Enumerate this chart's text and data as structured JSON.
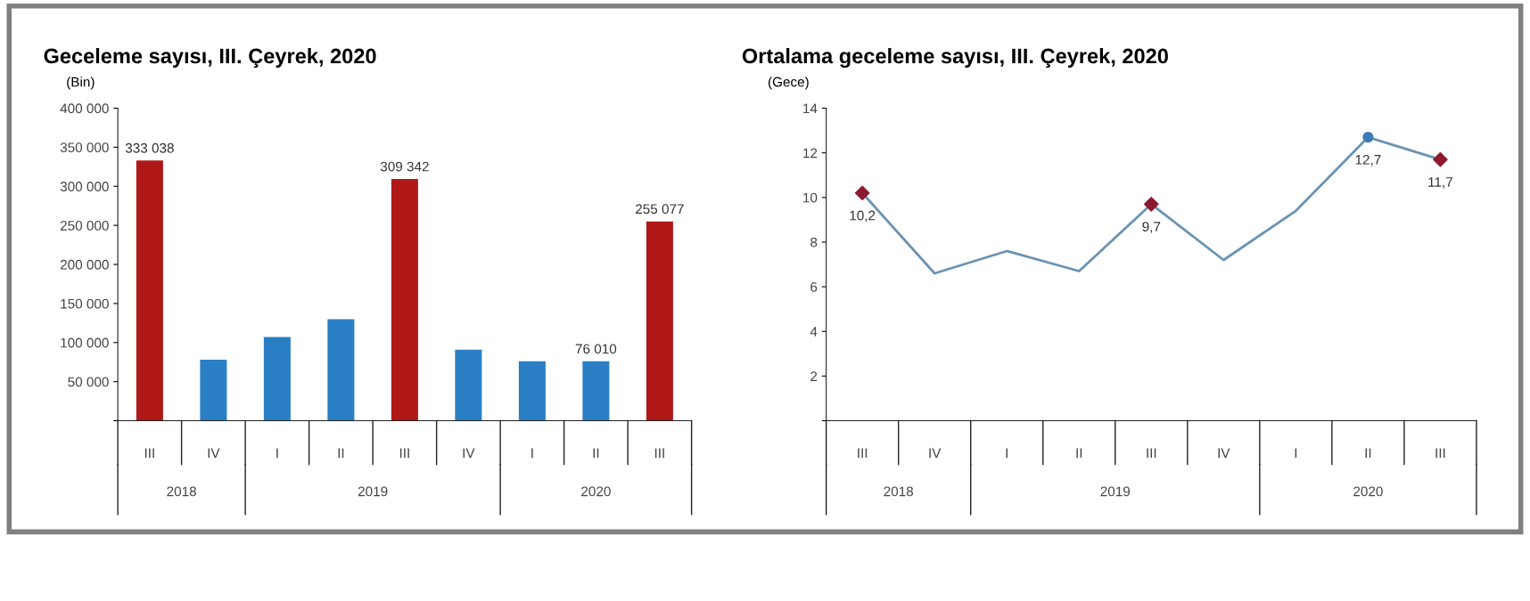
{
  "chart_data": [
    {
      "type": "bar",
      "title": "Geceleme sayısı, III. Çeyrek, 2020",
      "ylabel": "(Bin)",
      "categories": [
        "III",
        "IV",
        "I",
        "II",
        "III",
        "IV",
        "I",
        "II",
        "III"
      ],
      "values": [
        333038,
        78000,
        107000,
        130000,
        309342,
        91000,
        76000,
        76010,
        255077
      ],
      "colors": [
        "#b01818",
        "#2a7fc4",
        "#2a7fc4",
        "#2a7fc4",
        "#b01818",
        "#2a7fc4",
        "#2a7fc4",
        "#2a7fc4",
        "#b01818"
      ],
      "value_labels": [
        "333 038",
        null,
        null,
        null,
        "309 342",
        null,
        null,
        "76 010",
        "255 077"
      ],
      "ylim": [
        0,
        400000
      ],
      "yticks": [
        {
          "value": 0,
          "label": null
        },
        {
          "value": 50000,
          "label": "50 000"
        },
        {
          "value": 100000,
          "label": "100 000"
        },
        {
          "value": 150000,
          "label": "150 000"
        },
        {
          "value": 200000,
          "label": "200 000"
        },
        {
          "value": 250000,
          "label": "250 000"
        },
        {
          "value": 300000,
          "label": "300 000"
        },
        {
          "value": 350000,
          "label": "350 000"
        },
        {
          "value": 400000,
          "label": "400 000"
        }
      ],
      "annotations": [
        "2018",
        "2019",
        "2020"
      ],
      "grid": false,
      "legend": false
    },
    {
      "type": "line",
      "title": "Ortalama geceleme sayısı, III. Çeyrek, 2020",
      "ylabel": "(Gece)",
      "categories": [
        "III",
        "IV",
        "I",
        "II",
        "III",
        "IV",
        "I",
        "II",
        "III"
      ],
      "series": [
        {
          "type": "line",
          "color": "#6a93b3",
          "values": [
            10.2,
            6.6,
            7.6,
            6.7,
            9.7,
            7.2,
            9.4,
            12.7,
            11.7
          ],
          "value_labels": [
            "10,2",
            null,
            null,
            null,
            "9,7",
            null,
            null,
            "12,7",
            "11,7"
          ],
          "marker": "none"
        },
        {
          "type": "scatter",
          "color": "#8b1a2e",
          "values": [
            10.2,
            null,
            null,
            null,
            9.7,
            null,
            null,
            null,
            11.7
          ],
          "marker": "diamond"
        },
        {
          "type": "scatter",
          "color": "#3d7ab5",
          "values": [
            null,
            null,
            null,
            null,
            null,
            null,
            null,
            12.7,
            null
          ],
          "marker": "circle"
        }
      ],
      "ylim": [
        0,
        14
      ],
      "yticks": [
        {
          "value": 0,
          "label": null
        },
        2,
        4,
        6,
        8,
        10,
        12,
        14
      ],
      "annotations": [
        "2018",
        "2019",
        "2020"
      ],
      "grid": false,
      "legend": false
    }
  ]
}
